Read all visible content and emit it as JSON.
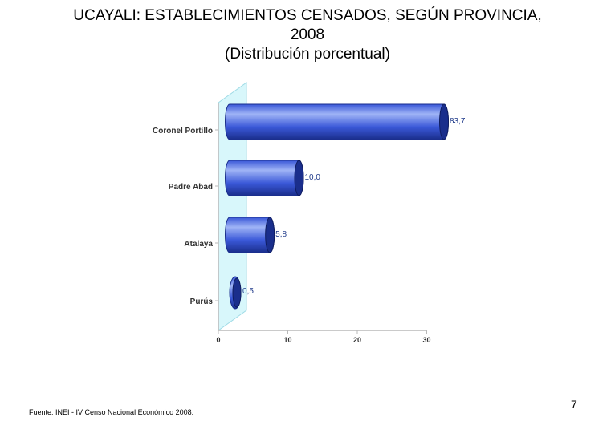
{
  "slide": {
    "title_line1": "UCAYALI: ESTABLECIMIENTOS CENSADOS, SEGÚN PROVINCIA,",
    "title_line2": "2008",
    "subtitle": "(Distribución porcentual)",
    "source": "Fuente: INEI - IV Censo Nacional Económico 2008.",
    "page_number": "7"
  },
  "chart_data": {
    "type": "bar",
    "orientation": "horizontal",
    "style": "3d-cylinder",
    "title": "UCAYALI: ESTABLECIMIENTOS CENSADOS, SEGÚN PROVINCIA, 2008",
    "subtitle": "(Distribución porcentual)",
    "xlabel": "",
    "ylabel": "",
    "categories": [
      "Coronel Portillo",
      "Padre Abad",
      "Atalaya",
      "Purús"
    ],
    "values": [
      83.7,
      10.0,
      5.8,
      0.5
    ],
    "data_labels": [
      "83,7",
      "10,0",
      "5,8",
      "0,5"
    ],
    "x_ticks": [
      0,
      10,
      20,
      30
    ],
    "x_tick_labels": [
      "0",
      "10",
      "20",
      "30"
    ],
    "xlim": [
      0,
      30
    ],
    "grid": false,
    "legend": "none",
    "colors": {
      "bar": "#3a58d8",
      "bar_dark": "#1a2e8c",
      "bar_highlight": "#9fb4f6",
      "wall": "#d8f7fb",
      "wall_edge": "#9fdbe6",
      "axis": "#b9b9b9"
    }
  }
}
